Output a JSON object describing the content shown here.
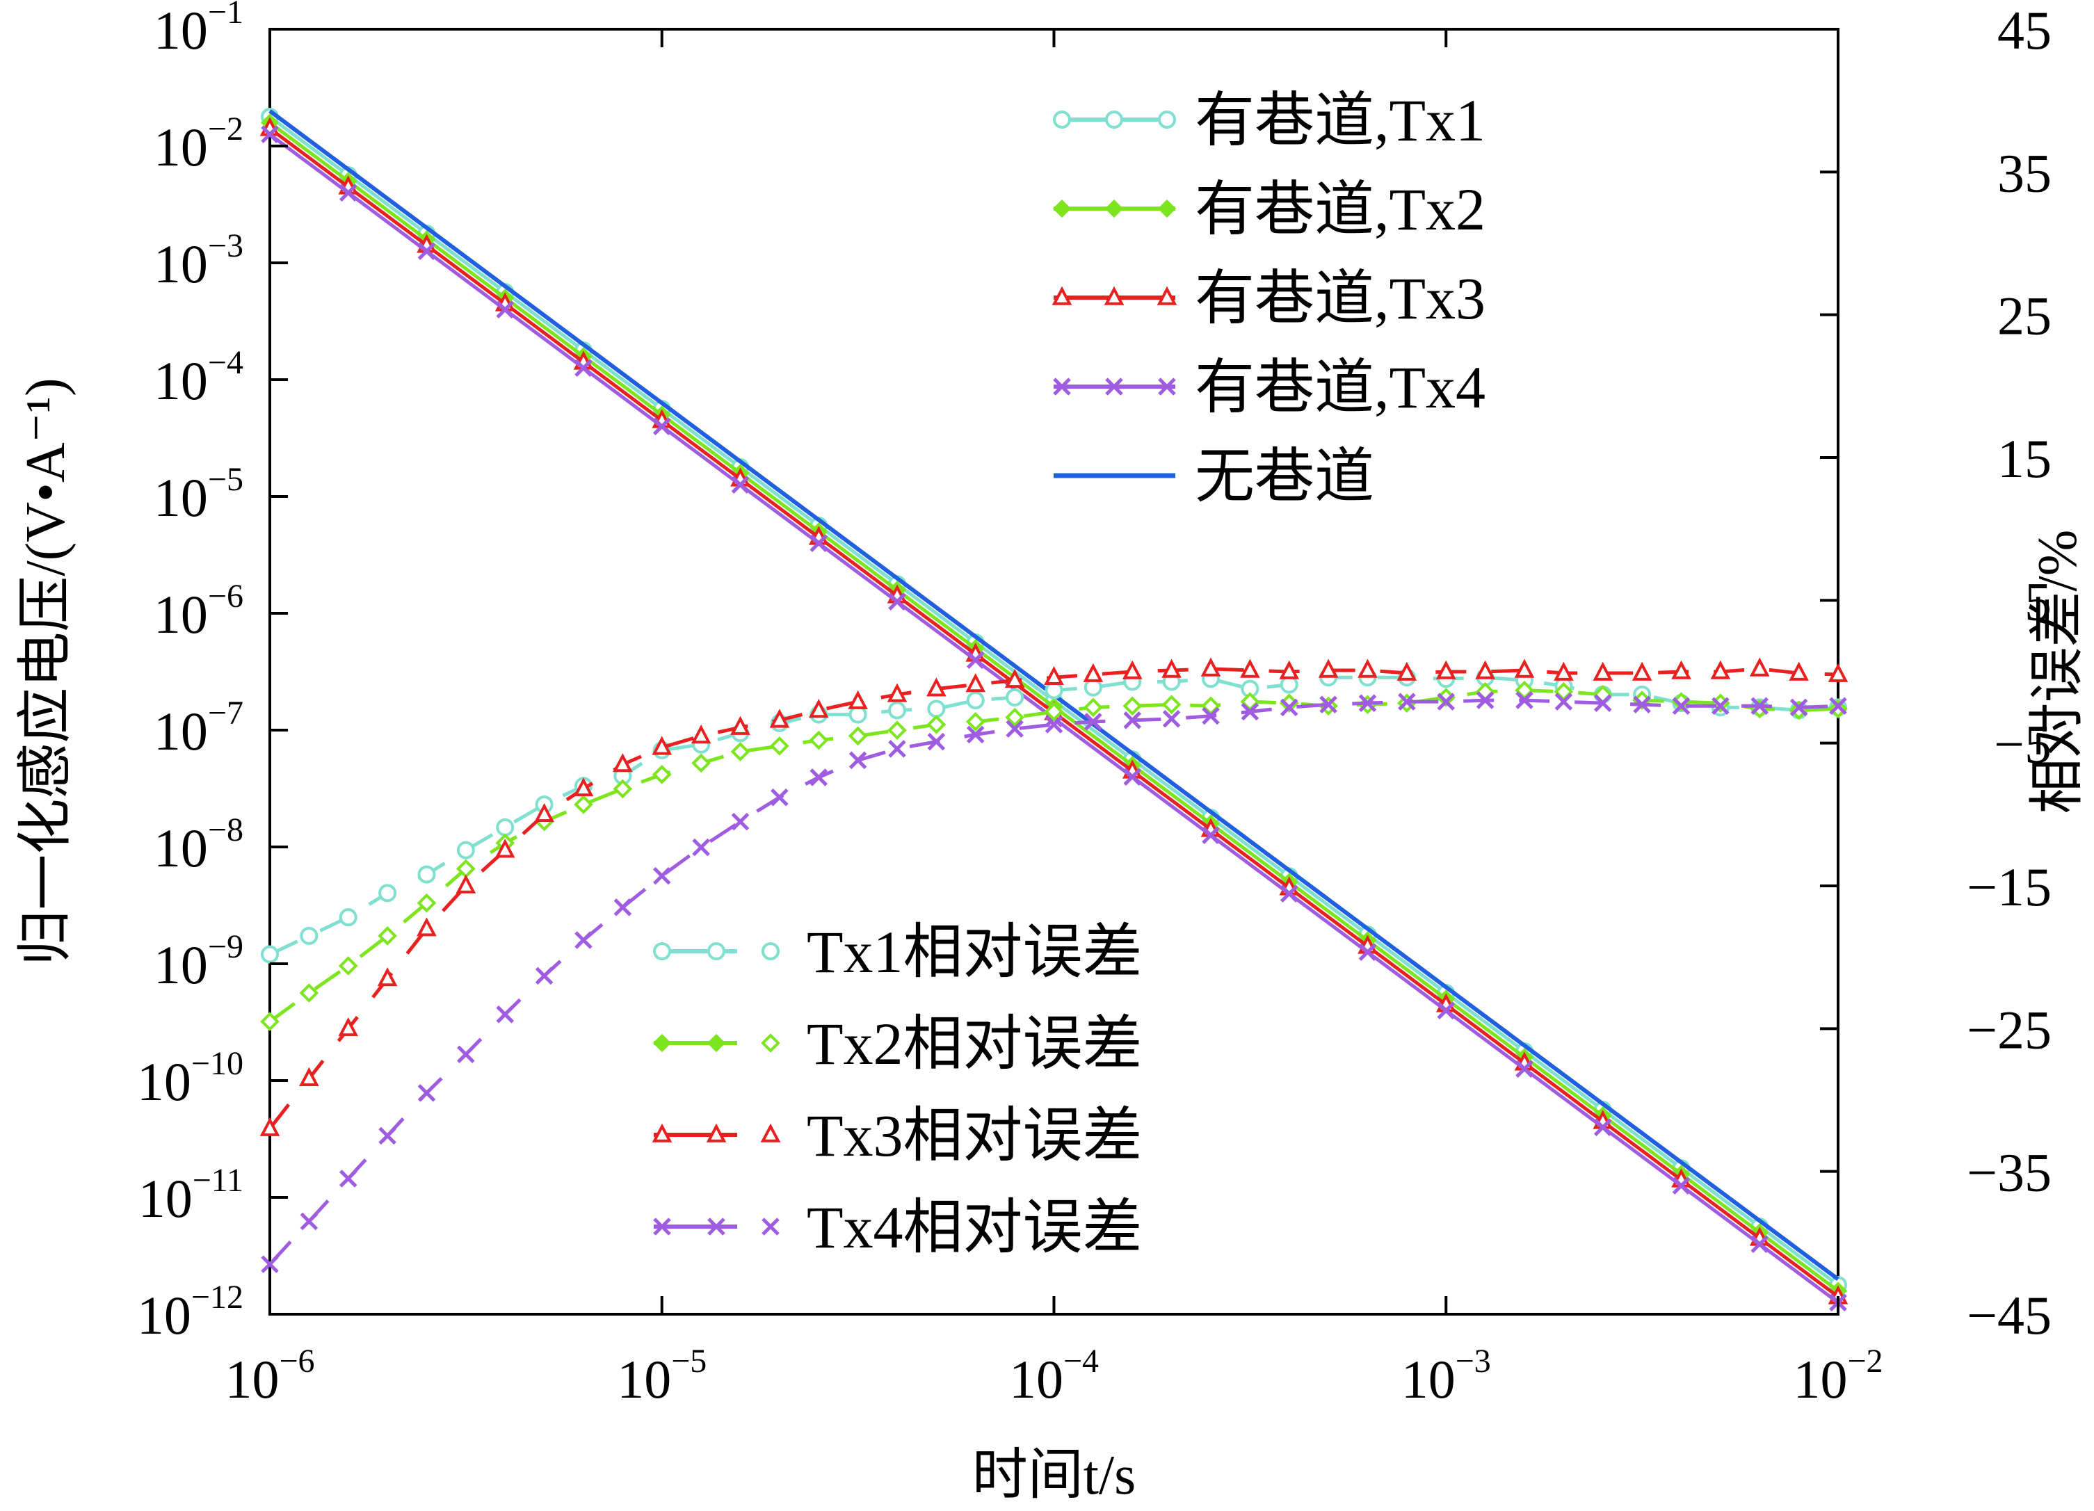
{
  "chart_data": {
    "type": "line",
    "xlabel": "时间t/s",
    "ylabel_left": "归一化感应电压/(V•A⁻¹)",
    "ylabel_right": "相对误差/%",
    "x_scale": "log",
    "y_left_scale": "log",
    "xlim": [
      1e-06,
      0.01
    ],
    "ylim_left": [
      1e-12,
      0.1
    ],
    "ylim_right": [
      -45,
      45
    ],
    "x_ticks": [
      {
        "base": "10",
        "exp": "−6"
      },
      {
        "base": "10",
        "exp": "−5"
      },
      {
        "base": "10",
        "exp": "−4"
      },
      {
        "base": "10",
        "exp": "−3"
      },
      {
        "base": "10",
        "exp": "−2"
      }
    ],
    "y_left_ticks": [
      {
        "base": "10",
        "exp": "−1"
      },
      {
        "base": "10",
        "exp": "−2"
      },
      {
        "base": "10",
        "exp": "−3"
      },
      {
        "base": "10",
        "exp": "−4"
      },
      {
        "base": "10",
        "exp": "−5"
      },
      {
        "base": "10",
        "exp": "−6"
      },
      {
        "base": "10",
        "exp": "−7"
      },
      {
        "base": "10",
        "exp": "−8"
      },
      {
        "base": "10",
        "exp": "−9"
      },
      {
        "base": "10",
        "exp": "−10"
      },
      {
        "base": "10",
        "exp": "−11"
      },
      {
        "base": "10",
        "exp": "−12"
      }
    ],
    "y_right_ticks": [
      "45",
      "35",
      "25",
      "15",
      "5",
      "−5",
      "−15",
      "−25",
      "−35",
      "−45"
    ],
    "legend_top_right": [
      "有巷道,Tx1",
      "有巷道,Tx2",
      "有巷道,Tx3",
      "有巷道,Tx4",
      "无巷道"
    ],
    "legend_bottom_left": [
      "Tx1相对误差",
      "Tx2相对误差",
      "Tx3相对误差",
      "Tx4相对误差"
    ],
    "colors": {
      "tx1": "#7fe0d0",
      "tx2": "#7ce51e",
      "tx3": "#e82020",
      "tx4": "#a05ce0",
      "no_tunnel": "#2060e0"
    },
    "marker_x_log": [
      -6.0,
      -5.9,
      -5.8,
      -5.7,
      -5.6,
      -5.5,
      -5.4,
      -5.3,
      -5.2,
      -5.1,
      -5.0,
      -4.9,
      -4.8,
      -4.7,
      -4.6,
      -4.5,
      -4.4,
      -4.3,
      -4.2,
      -4.1,
      -4.0,
      -3.9,
      -3.8,
      -3.7,
      -3.6,
      -3.5,
      -3.4,
      -3.3,
      -3.2,
      -3.1,
      -3.0,
      -2.9,
      -2.8,
      -2.7,
      -2.6,
      -2.5,
      -2.4,
      -2.3,
      -2.2,
      -2.1,
      -2.0
    ],
    "voltage_series": [
      {
        "name": "有巷道,Tx1",
        "key": "tx1",
        "style": "circle",
        "log10_v_at_1us": -1.75,
        "slope": -2.5
      },
      {
        "name": "有巷道,Tx2",
        "key": "tx2",
        "style": "diamond",
        "log10_v_at_1us": -1.8,
        "slope": -2.5
      },
      {
        "name": "有巷道,Tx3",
        "key": "tx3",
        "style": "triangle",
        "log10_v_at_1us": -1.85,
        "slope": -2.5
      },
      {
        "name": "有巷道,Tx4",
        "key": "tx4",
        "style": "cross",
        "log10_v_at_1us": -1.9,
        "slope": -2.5
      },
      {
        "name": "无巷道",
        "key": "no_tunnel",
        "style": "line",
        "log10_v_at_1us": -1.7,
        "slope": -2.5
      }
    ],
    "error_series": [
      {
        "name": "Tx1相对误差",
        "key": "tx1",
        "style": "circle",
        "x_log": [
          -6.0,
          -5.9,
          -5.8,
          -5.7,
          -5.6,
          -5.5,
          -5.4,
          -5.3,
          -5.2,
          -5.1,
          -5.0,
          -4.9,
          -4.8,
          -4.7,
          -4.6,
          -4.5,
          -4.4,
          -4.3,
          -4.2,
          -4.1,
          -4.0,
          -3.9,
          -3.8,
          -3.7,
          -3.6,
          -3.5,
          -3.4,
          -3.3,
          -3.2,
          -3.1,
          -3.0,
          -2.9,
          -2.8,
          -2.7,
          -2.6,
          -2.5,
          -2.4,
          -2.3,
          -2.2,
          -2.1,
          -2.0
        ],
        "y": [
          -19.8,
          -18.5,
          -17.2,
          -15.5,
          -14.2,
          -12.5,
          -10.9,
          -9.3,
          -8.0,
          -7.3,
          -5.5,
          -5.1,
          -4.3,
          -3.6,
          -3.0,
          -3.0,
          -2.7,
          -2.6,
          -2.0,
          -1.8,
          -1.3,
          -1.1,
          -0.7,
          -0.7,
          -0.5,
          -1.2,
          -0.9,
          -0.4,
          -0.4,
          -0.4,
          -0.5,
          -0.4,
          -0.6,
          -1.0,
          -1.6,
          -1.6,
          -2.2,
          -2.5,
          -2.5,
          -2.7,
          -2.5
        ]
      },
      {
        "name": "Tx2相对误差",
        "key": "tx2",
        "style": "diamond",
        "x_log": [
          -6.0,
          -5.9,
          -5.8,
          -5.7,
          -5.6,
          -5.5,
          -5.4,
          -5.3,
          -5.2,
          -5.1,
          -5.0,
          -4.9,
          -4.8,
          -4.7,
          -4.6,
          -4.5,
          -4.4,
          -4.3,
          -4.2,
          -4.1,
          -4.0,
          -3.9,
          -3.8,
          -3.7,
          -3.6,
          -3.5,
          -3.4,
          -3.3,
          -3.2,
          -3.1,
          -3.0,
          -2.9,
          -2.8,
          -2.7,
          -2.6,
          -2.5,
          -2.4,
          -2.3,
          -2.2,
          -2.1,
          -2.0
        ],
        "y": [
          -24.5,
          -22.5,
          -20.6,
          -18.5,
          -16.2,
          -13.8,
          -12.0,
          -10.5,
          -9.3,
          -8.2,
          -7.2,
          -6.4,
          -5.6,
          -5.2,
          -4.8,
          -4.5,
          -4.1,
          -3.7,
          -3.5,
          -3.2,
          -2.8,
          -2.5,
          -2.4,
          -2.3,
          -2.4,
          -2.1,
          -2.2,
          -2.4,
          -2.3,
          -2.2,
          -1.8,
          -1.4,
          -1.3,
          -1.4,
          -1.6,
          -2.0,
          -2.1,
          -2.2,
          -2.6,
          -2.7,
          -2.6
        ]
      },
      {
        "name": "Tx3相对误差",
        "key": "tx3",
        "style": "triangle",
        "x_log": [
          -6.0,
          -5.9,
          -5.8,
          -5.7,
          -5.6,
          -5.5,
          -5.4,
          -5.3,
          -5.2,
          -5.1,
          -5.0,
          -4.9,
          -4.8,
          -4.7,
          -4.6,
          -4.5,
          -4.4,
          -4.3,
          -4.2,
          -4.1,
          -4.0,
          -3.9,
          -3.8,
          -3.7,
          -3.6,
          -3.5,
          -3.4,
          -3.3,
          -3.2,
          -3.1,
          -3.0,
          -2.9,
          -2.8,
          -2.7,
          -2.6,
          -2.5,
          -2.4,
          -2.3,
          -2.2,
          -2.1,
          -2.0
        ],
        "y": [
          -32.0,
          -28.5,
          -25.0,
          -21.5,
          -18.0,
          -15.0,
          -12.5,
          -10.0,
          -8.2,
          -6.5,
          -5.3,
          -4.5,
          -3.9,
          -3.4,
          -2.7,
          -2.1,
          -1.6,
          -1.2,
          -0.9,
          -0.6,
          -0.4,
          -0.2,
          0.0,
          0.1,
          0.2,
          0.1,
          0.0,
          0.1,
          0.1,
          -0.1,
          0.0,
          0.0,
          0.1,
          -0.1,
          -0.1,
          -0.1,
          0.0,
          0.0,
          0.2,
          -0.1,
          -0.2
        ]
      },
      {
        "name": "Tx4相对误差",
        "key": "tx4",
        "style": "cross",
        "x_log": [
          -6.0,
          -5.9,
          -5.8,
          -5.7,
          -5.6,
          -5.5,
          -5.4,
          -5.3,
          -5.2,
          -5.1,
          -5.0,
          -4.9,
          -4.8,
          -4.7,
          -4.6,
          -4.5,
          -4.4,
          -4.3,
          -4.2,
          -4.1,
          -4.0,
          -3.9,
          -3.8,
          -3.7,
          -3.6,
          -3.5,
          -3.4,
          -3.3,
          -3.2,
          -3.1,
          -3.0,
          -2.9,
          -2.8,
          -2.7,
          -2.6,
          -2.5,
          -2.4,
          -2.3,
          -2.2,
          -2.1,
          -2.0
        ],
        "y": [
          -41.5,
          -38.5,
          -35.5,
          -32.5,
          -29.5,
          -26.8,
          -24.0,
          -21.3,
          -18.8,
          -16.5,
          -14.3,
          -12.3,
          -10.5,
          -8.8,
          -7.4,
          -6.2,
          -5.4,
          -4.9,
          -4.4,
          -4.0,
          -3.7,
          -3.5,
          -3.4,
          -3.3,
          -3.1,
          -2.8,
          -2.5,
          -2.3,
          -2.2,
          -2.1,
          -2.1,
          -2.0,
          -2.0,
          -2.1,
          -2.2,
          -2.3,
          -2.4,
          -2.4,
          -2.4,
          -2.5,
          -2.4
        ]
      }
    ]
  }
}
